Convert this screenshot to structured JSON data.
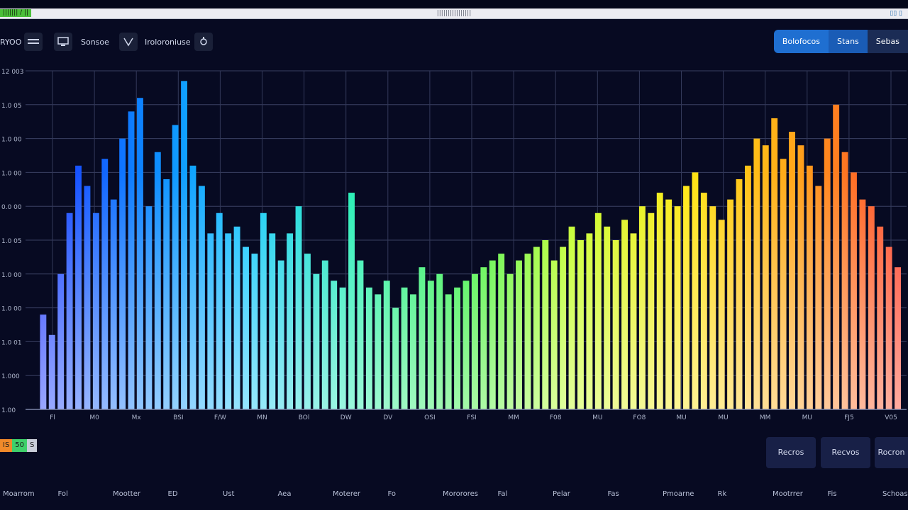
{
  "window": {
    "badge": "||||||| / ||",
    "title": "||||||||||||||||",
    "controls": "▯▯ ▯"
  },
  "toolbar": {
    "app_label": "RYOO",
    "item_label_1": "Sonsoe",
    "item_label_2": "Iroloroniuse"
  },
  "tabs": [
    "Bolofocos",
    "Stans",
    "Sebas"
  ],
  "legend_chips": [
    {
      "label": "IS",
      "color": "#f08a2a"
    },
    {
      "label": "50",
      "color": "#3fd06a"
    },
    {
      "label": "S",
      "color": "#c9ced9"
    }
  ],
  "action_buttons": [
    "Recros",
    "Recvos",
    "Rocron"
  ],
  "bottom_labels": [
    "Moarrom",
    "Fol",
    "Mootter",
    "ED",
    "Ust",
    "Aea",
    "Moterer",
    "Fo",
    "Mororores",
    "Fal",
    "Pelar",
    "Fas",
    "Pmoarne",
    "Rk",
    "Mootrrer",
    "Fis",
    "Schoas"
  ],
  "chart_data": {
    "type": "bar",
    "y_tick_labels": [
      "12 003",
      "1.0 05",
      "1.0 00",
      "1.0 00",
      "0.0 00",
      "1.0 05",
      "1.0 00",
      "1.0 00",
      "1.0 01",
      "1.000",
      "1.00"
    ],
    "x_tick_labels": [
      "Fl",
      "M0",
      "Mx",
      "BSI",
      "F/W",
      "MN",
      "BOl",
      "DW",
      "DV",
      "OSI",
      "FSI",
      "MM",
      "F08",
      "MU",
      "FO8",
      "MU",
      "MU",
      "MM",
      "MU",
      "FJ5",
      "V05"
    ],
    "ylim": [
      0,
      100
    ],
    "grid": true,
    "gradient_colors": [
      "#1f2bff",
      "#0d7fff",
      "#14c7ff",
      "#22f0b0",
      "#33f03d",
      "#c6ff1f",
      "#ffe712",
      "#ffa41a",
      "#ff3b2b"
    ],
    "bars": [
      {
        "x": 0.02,
        "value": 28
      },
      {
        "x": 0.03,
        "value": 22
      },
      {
        "x": 0.04,
        "value": 40
      },
      {
        "x": 0.05,
        "value": 58
      },
      {
        "x": 0.06,
        "value": 72
      },
      {
        "x": 0.07,
        "value": 66
      },
      {
        "x": 0.08,
        "value": 58
      },
      {
        "x": 0.09,
        "value": 74
      },
      {
        "x": 0.1,
        "value": 62
      },
      {
        "x": 0.11,
        "value": 80
      },
      {
        "x": 0.12,
        "value": 88
      },
      {
        "x": 0.13,
        "value": 92
      },
      {
        "x": 0.14,
        "value": 60
      },
      {
        "x": 0.15,
        "value": 76
      },
      {
        "x": 0.16,
        "value": 68
      },
      {
        "x": 0.17,
        "value": 84
      },
      {
        "x": 0.18,
        "value": 97
      },
      {
        "x": 0.19,
        "value": 72
      },
      {
        "x": 0.2,
        "value": 66
      },
      {
        "x": 0.21,
        "value": 52
      },
      {
        "x": 0.22,
        "value": 58
      },
      {
        "x": 0.23,
        "value": 52
      },
      {
        "x": 0.24,
        "value": 54
      },
      {
        "x": 0.25,
        "value": 48
      },
      {
        "x": 0.26,
        "value": 46
      },
      {
        "x": 0.27,
        "value": 58
      },
      {
        "x": 0.28,
        "value": 52
      },
      {
        "x": 0.29,
        "value": 44
      },
      {
        "x": 0.3,
        "value": 52
      },
      {
        "x": 0.31,
        "value": 60
      },
      {
        "x": 0.32,
        "value": 46
      },
      {
        "x": 0.33,
        "value": 40
      },
      {
        "x": 0.34,
        "value": 44
      },
      {
        "x": 0.35,
        "value": 38
      },
      {
        "x": 0.36,
        "value": 36
      },
      {
        "x": 0.37,
        "value": 64
      },
      {
        "x": 0.38,
        "value": 44
      },
      {
        "x": 0.39,
        "value": 36
      },
      {
        "x": 0.4,
        "value": 34
      },
      {
        "x": 0.41,
        "value": 38
      },
      {
        "x": 0.42,
        "value": 30
      },
      {
        "x": 0.43,
        "value": 36
      },
      {
        "x": 0.44,
        "value": 34
      },
      {
        "x": 0.45,
        "value": 42
      },
      {
        "x": 0.46,
        "value": 38
      },
      {
        "x": 0.47,
        "value": 40
      },
      {
        "x": 0.48,
        "value": 34
      },
      {
        "x": 0.49,
        "value": 36
      },
      {
        "x": 0.5,
        "value": 38
      },
      {
        "x": 0.51,
        "value": 40
      },
      {
        "x": 0.52,
        "value": 42
      },
      {
        "x": 0.53,
        "value": 44
      },
      {
        "x": 0.54,
        "value": 46
      },
      {
        "x": 0.55,
        "value": 40
      },
      {
        "x": 0.56,
        "value": 44
      },
      {
        "x": 0.57,
        "value": 46
      },
      {
        "x": 0.58,
        "value": 48
      },
      {
        "x": 0.59,
        "value": 50
      },
      {
        "x": 0.6,
        "value": 44
      },
      {
        "x": 0.61,
        "value": 48
      },
      {
        "x": 0.62,
        "value": 54
      },
      {
        "x": 0.63,
        "value": 50
      },
      {
        "x": 0.64,
        "value": 52
      },
      {
        "x": 0.65,
        "value": 58
      },
      {
        "x": 0.66,
        "value": 54
      },
      {
        "x": 0.67,
        "value": 50
      },
      {
        "x": 0.68,
        "value": 56
      },
      {
        "x": 0.69,
        "value": 52
      },
      {
        "x": 0.7,
        "value": 60
      },
      {
        "x": 0.71,
        "value": 58
      },
      {
        "x": 0.72,
        "value": 64
      },
      {
        "x": 0.73,
        "value": 62
      },
      {
        "x": 0.74,
        "value": 60
      },
      {
        "x": 0.75,
        "value": 66
      },
      {
        "x": 0.76,
        "value": 70
      },
      {
        "x": 0.77,
        "value": 64
      },
      {
        "x": 0.78,
        "value": 60
      },
      {
        "x": 0.79,
        "value": 56
      },
      {
        "x": 0.8,
        "value": 62
      },
      {
        "x": 0.81,
        "value": 68
      },
      {
        "x": 0.82,
        "value": 72
      },
      {
        "x": 0.83,
        "value": 80
      },
      {
        "x": 0.84,
        "value": 78
      },
      {
        "x": 0.85,
        "value": 86
      },
      {
        "x": 0.86,
        "value": 74
      },
      {
        "x": 0.87,
        "value": 82
      },
      {
        "x": 0.88,
        "value": 78
      },
      {
        "x": 0.89,
        "value": 72
      },
      {
        "x": 0.9,
        "value": 66
      },
      {
        "x": 0.91,
        "value": 80
      },
      {
        "x": 0.92,
        "value": 90
      },
      {
        "x": 0.93,
        "value": 76
      },
      {
        "x": 0.94,
        "value": 70
      },
      {
        "x": 0.95,
        "value": 62
      },
      {
        "x": 0.96,
        "value": 60
      },
      {
        "x": 0.97,
        "value": 54
      },
      {
        "x": 0.98,
        "value": 48
      },
      {
        "x": 0.99,
        "value": 42
      }
    ]
  }
}
